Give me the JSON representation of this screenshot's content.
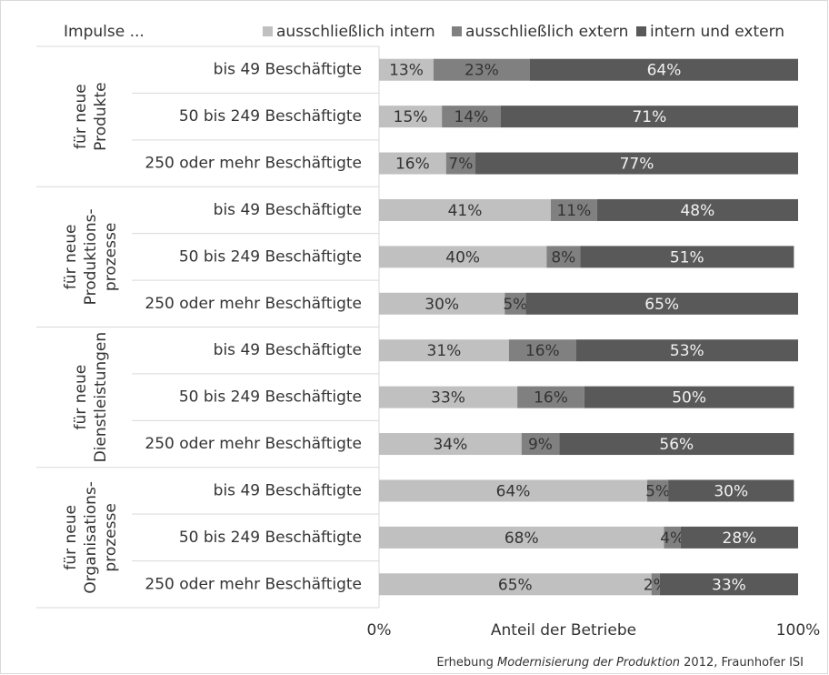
{
  "chart_data": {
    "type": "stacked-bar-horizontal",
    "legend_title": "Impulse ...",
    "categories": [
      "bis 49 Beschäftigte",
      "50 bis 249 Beschäftigte",
      "250 oder mehr Beschäftigte",
      "bis 49 Beschäftigte",
      "50 bis 249 Beschäftigte",
      "250 oder mehr Beschäftigte",
      "bis 49 Beschäftigte",
      "50 bis 249 Beschäftigte",
      "250 oder mehr Beschäftigte",
      "bis 49 Beschäftigte",
      "50 bis 249 Beschäftigte",
      "250 oder mehr Beschäftigte"
    ],
    "groups": [
      {
        "lines": [
          "für neue",
          "Produkte"
        ]
      },
      {
        "lines": [
          "für neue",
          "Produktions-",
          "prozesse"
        ]
      },
      {
        "lines": [
          "für neue",
          "Dienstleistungen"
        ]
      },
      {
        "lines": [
          "für neue",
          "Organisations-",
          "prozesse"
        ]
      }
    ],
    "series": [
      {
        "name": "ausschließlich intern",
        "color": "#c0c0c0",
        "label_color": "#333333",
        "values": [
          13,
          15,
          16,
          41,
          40,
          30,
          31,
          33,
          34,
          64,
          68,
          65
        ],
        "value_labels": [
          "13%",
          "15%",
          "16%",
          "41%",
          "40%",
          "30%",
          "31%",
          "33%",
          "34%",
          "64%",
          "68%",
          "65%"
        ]
      },
      {
        "name": "ausschließlich extern",
        "color": "#808080",
        "label_color": "#333333",
        "values": [
          23,
          14,
          7,
          11,
          8,
          5,
          16,
          16,
          9,
          5,
          4,
          2
        ],
        "value_labels": [
          "23%",
          "14%",
          "7%",
          "11%",
          "8%",
          "5%",
          "16%",
          "16%",
          "9%",
          "5%",
          "4%",
          "2%"
        ]
      },
      {
        "name": "intern und extern",
        "color": "#595959",
        "label_color": "#f2f2f2",
        "values": [
          64,
          71,
          77,
          48,
          51,
          65,
          53,
          50,
          56,
          30,
          28,
          33
        ],
        "value_labels": [
          "64%",
          "71%",
          "77%",
          "48%",
          "51%",
          "65%",
          "53%",
          "50%",
          "56%",
          "30%",
          "28%",
          "33%"
        ]
      }
    ],
    "xlim": [
      0,
      100
    ],
    "xticks": [
      {
        "value": 0,
        "label": "0%"
      },
      {
        "value": 100,
        "label": "100%"
      }
    ],
    "x_label": "Anteil der Betriebe",
    "source": [
      "Erhebung ",
      "Modernisierung der Produktion",
      " 2012, Fraunhofer ISI"
    ]
  }
}
